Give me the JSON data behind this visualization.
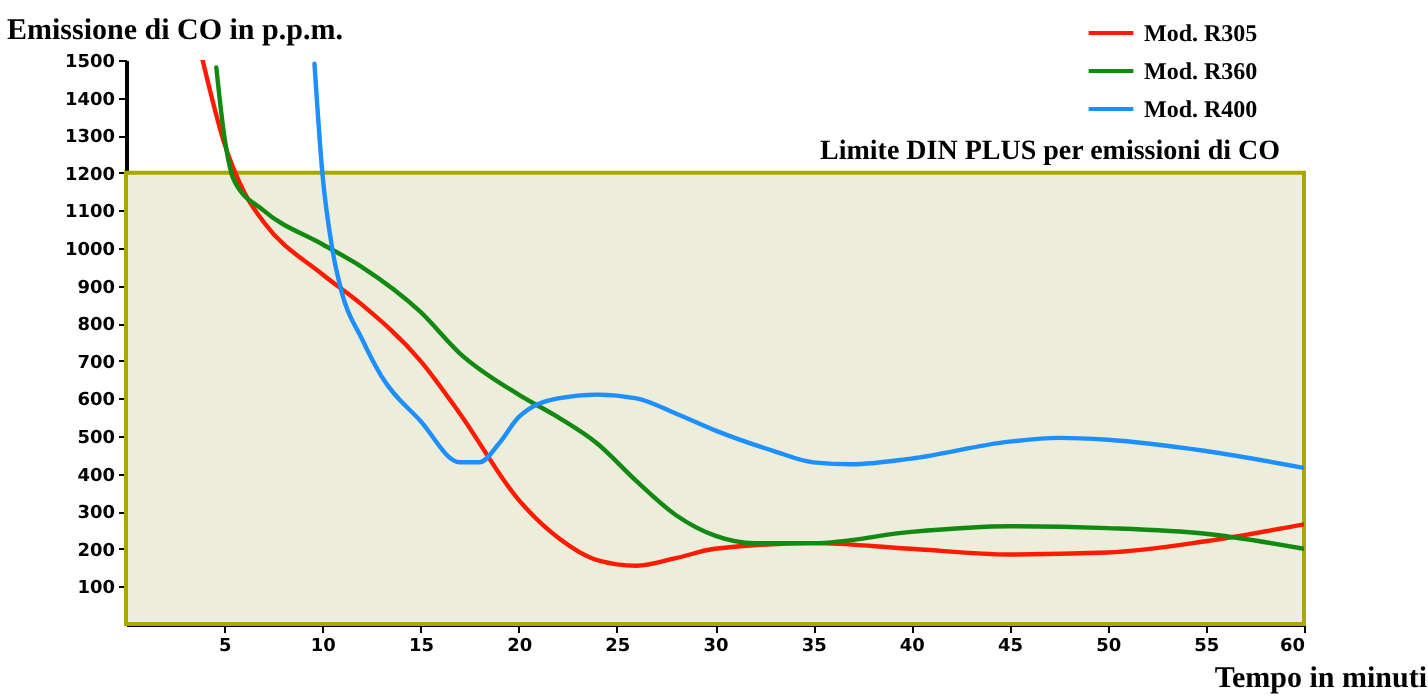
{
  "chart_data": {
    "type": "line",
    "ylabel": "Emissione di CO in p.p.m.",
    "xlabel": "Tempo in minuti",
    "xlim": [
      0,
      60
    ],
    "xticks": [
      5,
      10,
      15,
      20,
      25,
      30,
      35,
      40,
      45,
      50,
      55,
      60
    ],
    "ylim": [
      0,
      1500
    ],
    "yticks": [
      100,
      200,
      300,
      400,
      500,
      600,
      700,
      800,
      900,
      1000,
      1100,
      1200,
      1300,
      1400,
      1500
    ],
    "grid": false,
    "legend": "top right",
    "marker": "none",
    "line_style": "solid",
    "bands": [
      {
        "axis": "y",
        "from": 0,
        "to": 1200,
        "label": "Limite DIN PLUS per emissioni di CO",
        "color": "#ecedda"
      }
    ],
    "series": [
      {
        "name": "Mod. R305",
        "color": "#ff1a00",
        "x": [
          3.9,
          5,
          6,
          7,
          10,
          12,
          15,
          17,
          20,
          22,
          24,
          26,
          28,
          30,
          35,
          40,
          45,
          50,
          55,
          60
        ],
        "values": [
          1500,
          1280,
          1150,
          1070,
          930,
          850,
          700,
          560,
          330,
          230,
          170,
          155,
          175,
          200,
          215,
          200,
          185,
          190,
          220,
          265
        ]
      },
      {
        "name": "Mod. R360",
        "color": "#128a12",
        "x": [
          4.6,
          5,
          5.5,
          7,
          10,
          12,
          15,
          17,
          20,
          22,
          24,
          26,
          28,
          30,
          32,
          35,
          40,
          45,
          50,
          55,
          60
        ],
        "values": [
          1480,
          1300,
          1180,
          1100,
          1010,
          950,
          830,
          720,
          610,
          550,
          480,
          380,
          290,
          235,
          215,
          215,
          245,
          260,
          255,
          240,
          200
        ]
      },
      {
        "name": "Mod. R400",
        "color": "#1e8fff",
        "x": [
          9.6,
          10,
          10.5,
          11,
          12,
          13,
          15,
          17,
          18,
          19,
          20,
          22,
          24,
          26,
          28,
          30,
          33,
          35,
          37,
          40,
          45,
          47.5,
          50,
          55,
          60
        ],
        "values": [
          1490,
          1200,
          1000,
          880,
          760,
          660,
          540,
          430,
          430,
          480,
          550,
          600,
          610,
          600,
          560,
          515,
          460,
          430,
          425,
          440,
          485,
          495,
          490,
          460,
          415
        ]
      }
    ]
  }
}
